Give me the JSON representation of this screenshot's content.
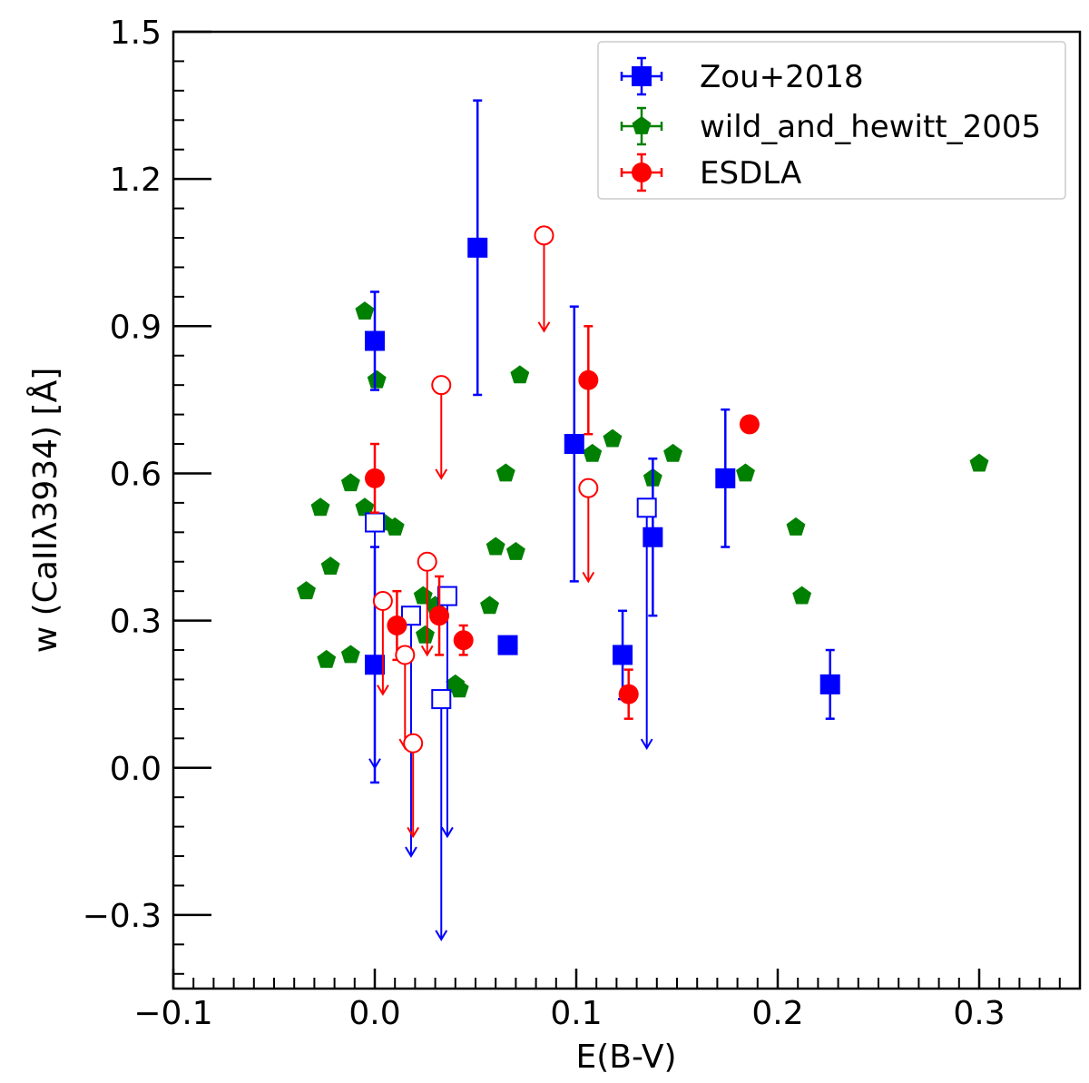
{
  "chart_data": {
    "type": "scatter",
    "title": "",
    "xlabel": "E(B-V)",
    "ylabel": "w (CaIIλ3934) [Å]",
    "xlim": [
      -0.1,
      0.35
    ],
    "ylim": [
      -0.45,
      1.5
    ],
    "x_ticks": [
      {
        "value": -0.1,
        "label": "−0.1"
      },
      {
        "value": 0.0,
        "label": "0.0"
      },
      {
        "value": 0.1,
        "label": "0.1"
      },
      {
        "value": 0.2,
        "label": "0.2"
      },
      {
        "value": 0.3,
        "label": "0.3"
      }
    ],
    "y_ticks": [
      {
        "value": -0.3,
        "label": "−0.3"
      },
      {
        "value": 0.0,
        "label": "0.0"
      },
      {
        "value": 0.3,
        "label": "0.3"
      },
      {
        "value": 0.6,
        "label": "0.6"
      },
      {
        "value": 0.9,
        "label": "0.9"
      },
      {
        "value": 1.2,
        "label": "1.2"
      },
      {
        "value": 1.5,
        "label": "1.5"
      }
    ],
    "grid": false,
    "legend_position": "top-right",
    "series": [
      {
        "name": "Zou+2018",
        "marker": "square",
        "color": "#0000ff",
        "detections": [
          {
            "x": 0.0,
            "y": 0.87,
            "ylo": 0.77,
            "yhi": 0.97
          },
          {
            "x": 0.0,
            "y": 0.21,
            "ylo": -0.03,
            "yhi": 0.45
          },
          {
            "x": 0.051,
            "y": 1.06,
            "ylo": 0.76,
            "yhi": 1.36
          },
          {
            "x": 0.066,
            "y": 0.25
          },
          {
            "x": 0.099,
            "y": 0.66,
            "ylo": 0.38,
            "yhi": 0.94
          },
          {
            "x": 0.123,
            "y": 0.23,
            "ylo": 0.14,
            "yhi": 0.32
          },
          {
            "x": 0.138,
            "y": 0.47,
            "ylo": 0.31,
            "yhi": 0.63
          },
          {
            "x": 0.174,
            "y": 0.59,
            "ylo": 0.45,
            "yhi": 0.73
          },
          {
            "x": 0.226,
            "y": 0.17,
            "ylo": 0.1,
            "yhi": 0.24
          }
        ],
        "upper_limits": [
          {
            "x": 0.0,
            "y": 0.5,
            "to": 0.0
          },
          {
            "x": 0.018,
            "y": 0.31,
            "to": -0.18
          },
          {
            "x": 0.033,
            "y": 0.14,
            "to": -0.35
          },
          {
            "x": 0.036,
            "y": 0.35,
            "to": -0.14
          },
          {
            "x": 0.135,
            "y": 0.53,
            "to": 0.04
          }
        ]
      },
      {
        "name": "wild_and_hewitt_2005",
        "marker": "pentagon",
        "color": "#008000",
        "detections": [
          {
            "x": -0.005,
            "y": 0.93
          },
          {
            "x": 0.001,
            "y": 0.79
          },
          {
            "x": 0.072,
            "y": 0.8
          },
          {
            "x": 0.118,
            "y": 0.67
          },
          {
            "x": 0.108,
            "y": 0.64
          },
          {
            "x": 0.148,
            "y": 0.64
          },
          {
            "x": 0.3,
            "y": 0.62
          },
          {
            "x": 0.065,
            "y": 0.6
          },
          {
            "x": 0.184,
            "y": 0.6
          },
          {
            "x": 0.138,
            "y": 0.59
          },
          {
            "x": -0.012,
            "y": 0.58
          },
          {
            "x": -0.027,
            "y": 0.53
          },
          {
            "x": -0.005,
            "y": 0.53
          },
          {
            "x": 0.004,
            "y": 0.5
          },
          {
            "x": 0.01,
            "y": 0.49
          },
          {
            "x": 0.209,
            "y": 0.49
          },
          {
            "x": 0.06,
            "y": 0.45
          },
          {
            "x": 0.07,
            "y": 0.44
          },
          {
            "x": -0.022,
            "y": 0.41
          },
          {
            "x": -0.034,
            "y": 0.36
          },
          {
            "x": 0.024,
            "y": 0.35
          },
          {
            "x": 0.212,
            "y": 0.35
          },
          {
            "x": 0.03,
            "y": 0.33
          },
          {
            "x": 0.057,
            "y": 0.33
          },
          {
            "x": 0.025,
            "y": 0.27
          },
          {
            "x": -0.012,
            "y": 0.23
          },
          {
            "x": -0.024,
            "y": 0.22
          },
          {
            "x": 0.04,
            "y": 0.17
          },
          {
            "x": 0.042,
            "y": 0.16
          }
        ]
      },
      {
        "name": "ESDLA",
        "marker": "circle",
        "color": "#ff0000",
        "detections": [
          {
            "x": 0.0,
            "y": 0.59,
            "ylo": 0.52,
            "yhi": 0.66
          },
          {
            "x": 0.011,
            "y": 0.29,
            "ylo": 0.22,
            "yhi": 0.36
          },
          {
            "x": 0.032,
            "y": 0.31,
            "ylo": 0.23,
            "yhi": 0.39
          },
          {
            "x": 0.044,
            "y": 0.26,
            "ylo": 0.23,
            "yhi": 0.29
          },
          {
            "x": 0.106,
            "y": 0.79,
            "ylo": 0.68,
            "yhi": 0.9
          },
          {
            "x": 0.126,
            "y": 0.15,
            "ylo": 0.1,
            "yhi": 0.2
          },
          {
            "x": 0.186,
            "y": 0.7
          }
        ],
        "upper_limits": [
          {
            "x": 0.084,
            "y": 1.085,
            "to": 0.89
          },
          {
            "x": 0.033,
            "y": 0.78,
            "to": 0.59
          },
          {
            "x": 0.106,
            "y": 0.57,
            "to": 0.38
          },
          {
            "x": 0.026,
            "y": 0.42,
            "to": 0.23
          },
          {
            "x": 0.004,
            "y": 0.34,
            "to": 0.15
          },
          {
            "x": 0.015,
            "y": 0.23,
            "to": 0.04
          },
          {
            "x": 0.019,
            "y": 0.05,
            "to": -0.14
          }
        ]
      }
    ]
  }
}
